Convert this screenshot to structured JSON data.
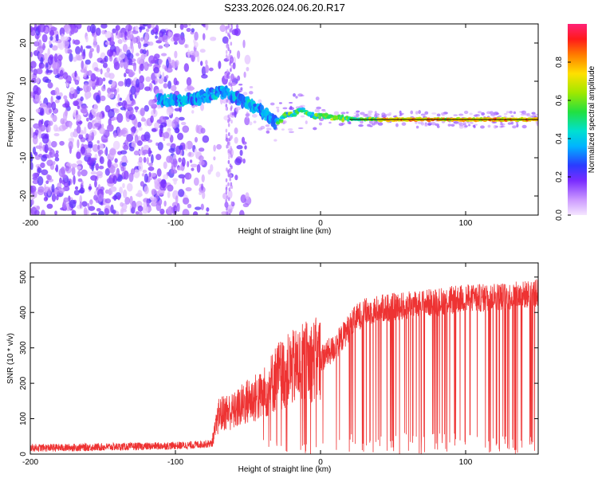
{
  "title": "S233.2026.024.06.20.R17",
  "chart_data": [
    {
      "type": "heatmap",
      "name": "spectrogram",
      "xlabel": "Height of straight line (km)",
      "ylabel": "Frequency (Hz)",
      "xlim": [
        -200,
        150
      ],
      "ylim": [
        -25,
        25
      ],
      "xticks": [
        -200,
        -100,
        0,
        100
      ],
      "yticks": [
        -20,
        -10,
        0,
        10,
        20
      ],
      "ridge": {
        "description_points_km_hz": [
          [
            -110,
            5
          ],
          [
            -95,
            5
          ],
          [
            -80,
            6
          ],
          [
            -65,
            7.5
          ],
          [
            -55,
            5
          ],
          [
            -45,
            3
          ],
          [
            -38,
            1.5
          ],
          [
            -30,
            -1
          ],
          [
            -25,
            1
          ],
          [
            -20,
            1.5
          ],
          [
            -12,
            2.5
          ],
          [
            -5,
            1
          ],
          [
            0,
            1
          ],
          [
            10,
            0.5
          ],
          [
            20,
            0.2
          ],
          [
            40,
            0
          ],
          [
            150,
            0
          ]
        ]
      },
      "colorbar": {
        "label": "Normalized spectral amplitude",
        "range": [
          0,
          1
        ],
        "ticks": [
          "0.0",
          "0.2",
          "0.4",
          "0.6",
          "0.8"
        ]
      }
    },
    {
      "type": "line",
      "name": "snr",
      "xlabel": "Height of straight line (km)",
      "ylabel": "SNR (10 * v/v)",
      "xlim": [
        -200,
        150
      ],
      "ylim": [
        0,
        540
      ],
      "xticks": [
        -200,
        -100,
        0,
        100
      ],
      "yticks": [
        0,
        100,
        200,
        300,
        400,
        500
      ],
      "color": "#ee3333",
      "envelope_x_km": [
        -200,
        -180,
        -150,
        -120,
        -90,
        -75,
        -70,
        -65,
        -60,
        -50,
        -40,
        -30,
        -20,
        -10,
        0,
        10,
        15,
        20,
        25,
        30,
        40,
        50,
        60,
        70,
        80,
        90,
        100,
        110,
        120,
        130,
        140,
        150
      ],
      "envelope_mean_snr": [
        18,
        18,
        20,
        22,
        25,
        30,
        110,
        120,
        120,
        150,
        165,
        220,
        240,
        260,
        270,
        300,
        330,
        360,
        385,
        400,
        410,
        415,
        420,
        425,
        430,
        435,
        440,
        440,
        445,
        445,
        450,
        455
      ]
    }
  ]
}
